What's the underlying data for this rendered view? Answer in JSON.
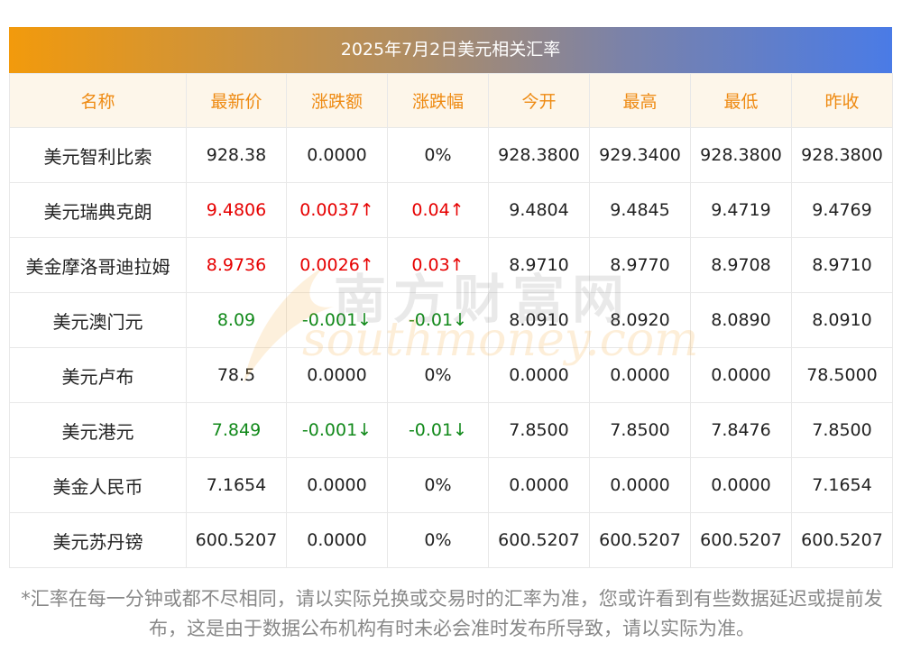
{
  "title": "2025年7月2日美元相关汇率",
  "headers": [
    "名称",
    "最新价",
    "涨跌额",
    "涨跌幅",
    "今开",
    "最高",
    "最低",
    "昨收"
  ],
  "rows": [
    {
      "name": "美元智利比索",
      "latest": "928.38",
      "change": "0.0000",
      "pct": "0%",
      "open": "928.3800",
      "high": "929.3400",
      "low": "928.3800",
      "prev": "928.3800",
      "trend": "flat"
    },
    {
      "name": "美元瑞典克朗",
      "latest": "9.4806",
      "change": "0.0037↑",
      "pct": "0.04↑",
      "open": "9.4804",
      "high": "9.4845",
      "low": "9.4719",
      "prev": "9.4769",
      "trend": "up"
    },
    {
      "name": "美金摩洛哥迪拉姆",
      "latest": "8.9736",
      "change": "0.0026↑",
      "pct": "0.03↑",
      "open": "8.9710",
      "high": "8.9770",
      "low": "8.9708",
      "prev": "8.9710",
      "trend": "up"
    },
    {
      "name": "美元澳门元",
      "latest": "8.09",
      "change": "-0.001↓",
      "pct": "-0.01↓",
      "open": "8.0910",
      "high": "8.0920",
      "low": "8.0890",
      "prev": "8.0910",
      "trend": "down"
    },
    {
      "name": "美元卢布",
      "latest": "78.5",
      "change": "0.0000",
      "pct": "0%",
      "open": "0.0000",
      "high": "0.0000",
      "low": "0.0000",
      "prev": "78.5000",
      "trend": "flat"
    },
    {
      "name": "美元港元",
      "latest": "7.849",
      "change": "-0.001↓",
      "pct": "-0.01↓",
      "open": "7.8500",
      "high": "7.8500",
      "low": "7.8476",
      "prev": "7.8500",
      "trend": "down"
    },
    {
      "name": "美金人民币",
      "latest": "7.1654",
      "change": "0.0000",
      "pct": "0%",
      "open": "0.0000",
      "high": "0.0000",
      "low": "0.0000",
      "prev": "7.1654",
      "trend": "flat"
    },
    {
      "name": "美元苏丹镑",
      "latest": "600.5207",
      "change": "0.0000",
      "pct": "0%",
      "open": "600.5207",
      "high": "600.5207",
      "low": "600.5207",
      "prev": "600.5207",
      "trend": "flat"
    }
  ],
  "watermark": {
    "cn": "南方财富网",
    "en": "southmoney.com"
  },
  "note": "*汇率在每一分钟或都不尽相同，请以实际兑换或交易时的汇率为准，您或许看到有些数据延迟或提前发布，这是由于数据公布机构有时未必会准时发布所导致，请以实际为准。",
  "colors": {
    "up": "#e60000",
    "down": "#11891a",
    "header_text": "#ee8a12",
    "header_bg": "#fdf6ea",
    "title_gradient_start": "#f29a0c",
    "title_gradient_end": "#4a7be6"
  }
}
